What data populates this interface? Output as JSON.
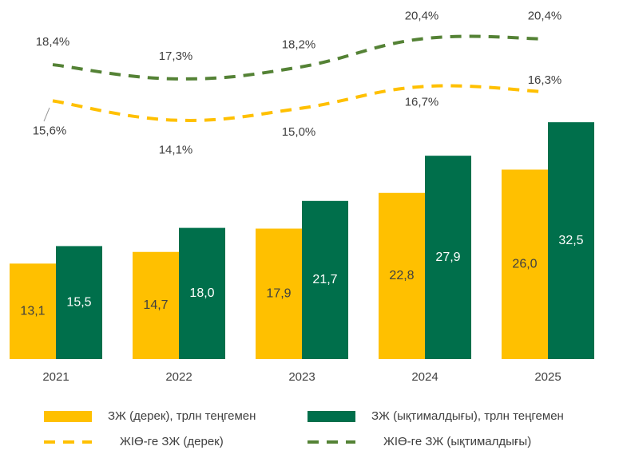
{
  "chart_data": {
    "type": "bar",
    "categories": [
      "2021",
      "2022",
      "2023",
      "2024",
      "2025"
    ],
    "ylim": [
      0,
      45
    ],
    "y2lim": [
      -4.4,
      21
    ],
    "series": [
      {
        "name": "ЗЖ (дерек), трлн теңгемен",
        "color": "#FFC000",
        "values": [
          13.1,
          14.7,
          17.9,
          22.8,
          26.0
        ],
        "value_labels": [
          "13,1",
          "14,7",
          "17,9",
          "22,8",
          "26,0"
        ]
      },
      {
        "name": "ЗЖ (ықтималдығы), трлн теңгемен",
        "color": "#006F4B",
        "values": [
          15.5,
          18.0,
          21.7,
          27.9,
          32.5
        ],
        "value_labels": [
          "15,5",
          "18,0",
          "21,7",
          "27,9",
          "32,5"
        ]
      },
      {
        "name": "ЖІӨ-ге ЗЖ (дерек)",
        "type": "line",
        "axis": "y2",
        "color": "#FFC000",
        "values": [
          15.6,
          14.1,
          15.0,
          16.7,
          16.3
        ],
        "value_labels": [
          "15,6%",
          "14,1%",
          "15,0%",
          "16,7%",
          "16,3%"
        ]
      },
      {
        "name": "ЖІӨ-ге ЗЖ (ықтималдығы)",
        "type": "line",
        "axis": "y2",
        "color": "#548235",
        "values": [
          18.4,
          17.3,
          18.2,
          20.4,
          20.4
        ],
        "value_labels": [
          "18,4%",
          "17,3%",
          "18,2%",
          "20,4%",
          "20,4%"
        ]
      }
    ]
  }
}
